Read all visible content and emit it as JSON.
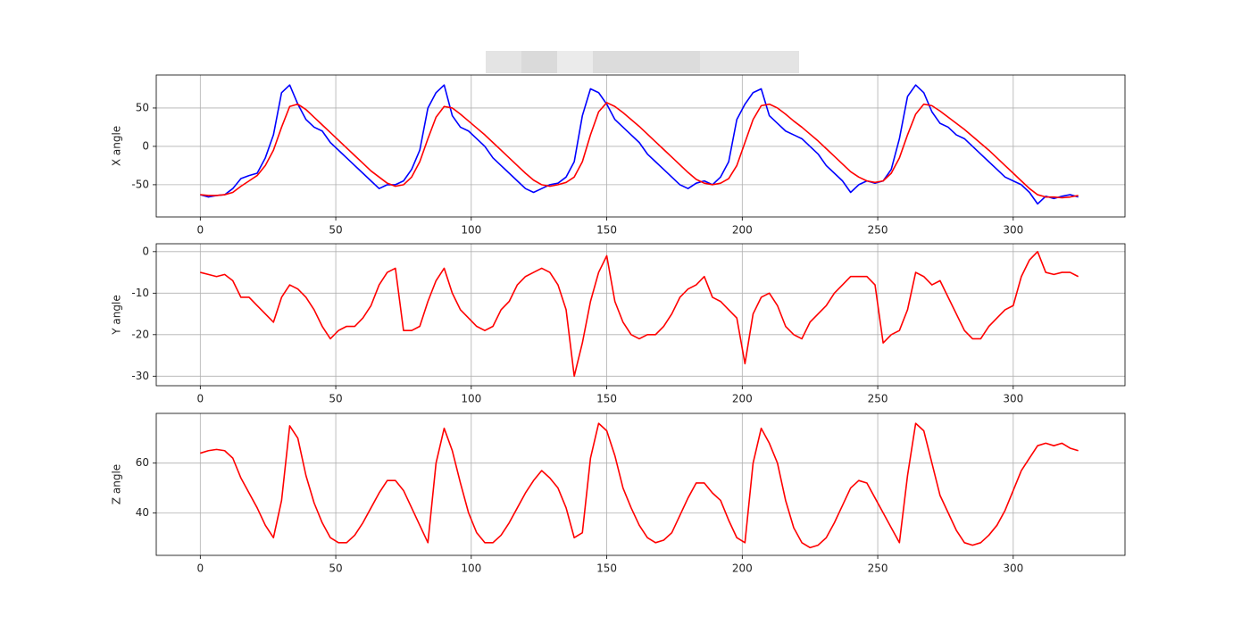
{
  "chart_data": [
    {
      "type": "line",
      "ylabel": "X angle",
      "x": [
        0,
        3,
        6,
        9,
        12,
        15,
        18,
        21,
        24,
        27,
        30,
        33,
        36,
        39,
        42,
        45,
        48,
        51,
        54,
        57,
        60,
        63,
        66,
        69,
        72,
        75,
        78,
        81,
        84,
        87,
        90,
        93,
        96,
        99,
        102,
        105,
        108,
        111,
        114,
        117,
        120,
        123,
        126,
        129,
        132,
        135,
        138,
        141,
        144,
        147,
        150,
        153,
        156,
        159,
        162,
        165,
        168,
        171,
        174,
        177,
        180,
        183,
        186,
        189,
        192,
        195,
        198,
        201,
        204,
        207,
        210,
        213,
        216,
        219,
        222,
        225,
        228,
        231,
        234,
        237,
        240,
        243,
        246,
        249,
        252,
        255,
        258,
        261,
        264,
        267,
        270,
        273,
        276,
        279,
        282,
        285,
        288,
        291,
        294,
        297,
        300,
        303,
        306,
        309,
        312,
        315,
        318,
        321,
        324
      ],
      "series": [
        {
          "color": "#0000ff",
          "values": [
            -63,
            -66,
            -64,
            -63,
            -55,
            -42,
            -38,
            -35,
            -15,
            15,
            70,
            80,
            55,
            35,
            25,
            20,
            5,
            -5,
            -15,
            -25,
            -35,
            -45,
            -55,
            -50,
            -50,
            -45,
            -30,
            -5,
            50,
            70,
            80,
            40,
            25,
            20,
            10,
            0,
            -15,
            -25,
            -35,
            -45,
            -55,
            -60,
            -55,
            -50,
            -48,
            -40,
            -20,
            40,
            75,
            70,
            55,
            35,
            25,
            15,
            5,
            -10,
            -20,
            -30,
            -40,
            -50,
            -55,
            -48,
            -45,
            -50,
            -40,
            -20,
            35,
            55,
            70,
            75,
            40,
            30,
            20,
            15,
            10,
            0,
            -10,
            -25,
            -35,
            -45,
            -60,
            -50,
            -45,
            -48,
            -45,
            -30,
            10,
            65,
            80,
            70,
            45,
            30,
            25,
            15,
            10,
            0,
            -10,
            -20,
            -30,
            -40,
            -45,
            -50,
            -60,
            -75,
            -65,
            -68,
            -65,
            -63,
            -66
          ]
        },
        {
          "color": "#ff0000",
          "values": [
            -63,
            -64,
            -64,
            -63,
            -60,
            -52,
            -45,
            -38,
            -25,
            -5,
            25,
            52,
            55,
            48,
            38,
            28,
            18,
            8,
            -2,
            -12,
            -22,
            -32,
            -40,
            -48,
            -52,
            -50,
            -40,
            -20,
            10,
            38,
            52,
            50,
            42,
            33,
            24,
            15,
            5,
            -5,
            -15,
            -25,
            -35,
            -44,
            -50,
            -52,
            -50,
            -47,
            -40,
            -20,
            15,
            45,
            57,
            52,
            44,
            35,
            26,
            16,
            6,
            -4,
            -14,
            -24,
            -34,
            -43,
            -48,
            -50,
            -48,
            -42,
            -25,
            5,
            35,
            53,
            55,
            50,
            42,
            33,
            25,
            16,
            7,
            -3,
            -13,
            -23,
            -33,
            -40,
            -45,
            -47,
            -45,
            -35,
            -15,
            15,
            42,
            55,
            53,
            46,
            38,
            30,
            22,
            13,
            4,
            -5,
            -15,
            -25,
            -35,
            -45,
            -55,
            -63,
            -66,
            -66,
            -67,
            -66,
            -64
          ]
        }
      ],
      "xlim": [
        -16.25,
        341.25
      ],
      "ylim": [
        -92,
        93
      ],
      "xticks": [
        0,
        50,
        100,
        150,
        200,
        250,
        300
      ],
      "yticks": [
        -50,
        0,
        50
      ],
      "grid": true
    },
    {
      "type": "line",
      "ylabel": "Y angle",
      "x": [
        0,
        3,
        6,
        9,
        12,
        15,
        18,
        21,
        24,
        27,
        30,
        33,
        36,
        39,
        42,
        45,
        48,
        51,
        54,
        57,
        60,
        63,
        66,
        69,
        72,
        75,
        78,
        81,
        84,
        87,
        90,
        93,
        96,
        99,
        102,
        105,
        108,
        111,
        114,
        117,
        120,
        123,
        126,
        129,
        132,
        135,
        138,
        141,
        144,
        147,
        150,
        153,
        156,
        159,
        162,
        165,
        168,
        171,
        174,
        177,
        180,
        183,
        186,
        189,
        192,
        195,
        198,
        201,
        204,
        207,
        210,
        213,
        216,
        219,
        222,
        225,
        228,
        231,
        234,
        237,
        240,
        243,
        246,
        249,
        252,
        255,
        258,
        261,
        264,
        267,
        270,
        273,
        276,
        279,
        282,
        285,
        288,
        291,
        294,
        297,
        300,
        303,
        306,
        309,
        312,
        315,
        318,
        321,
        324
      ],
      "series": [
        {
          "color": "#ff0000",
          "values": [
            -5,
            -5.5,
            -6,
            -5.5,
            -7,
            -11,
            -11,
            -13,
            -15,
            -17,
            -11,
            -8,
            -9,
            -11,
            -14,
            -18,
            -21,
            -19,
            -18,
            -18,
            -16,
            -13,
            -8,
            -5,
            -4,
            -19,
            -19,
            -18,
            -12,
            -7,
            -4,
            -10,
            -14,
            -16,
            -18,
            -19,
            -18,
            -14,
            -12,
            -8,
            -6,
            -5,
            -4,
            -5,
            -8,
            -14,
            -30,
            -22,
            -12,
            -5,
            -1,
            -12,
            -17,
            -20,
            -21,
            -20,
            -20,
            -18,
            -15,
            -11,
            -9,
            -8,
            -6,
            -11,
            -12,
            -14,
            -16,
            -27,
            -15,
            -11,
            -10,
            -13,
            -18,
            -20,
            -21,
            -17,
            -15,
            -13,
            -10,
            -8,
            -6,
            -6,
            -6,
            -8,
            -22,
            -20,
            -19,
            -14,
            -5,
            -6,
            -8,
            -7,
            -11,
            -15,
            -19,
            -21,
            -21,
            -18,
            -16,
            -14,
            -13,
            -6,
            -2,
            0,
            -5,
            -5.5,
            -5,
            -5,
            -6
          ]
        }
      ],
      "xlim": [
        -16.25,
        341.25
      ],
      "ylim": [
        -32.3,
        1.9
      ],
      "xticks": [
        0,
        50,
        100,
        150,
        200,
        250,
        300
      ],
      "yticks": [
        -30,
        -20,
        -10,
        0
      ],
      "grid": true
    },
    {
      "type": "line",
      "ylabel": "Z angle",
      "x": [
        0,
        3,
        6,
        9,
        12,
        15,
        18,
        21,
        24,
        27,
        30,
        33,
        36,
        39,
        42,
        45,
        48,
        51,
        54,
        57,
        60,
        63,
        66,
        69,
        72,
        75,
        78,
        81,
        84,
        87,
        90,
        93,
        96,
        99,
        102,
        105,
        108,
        111,
        114,
        117,
        120,
        123,
        126,
        129,
        132,
        135,
        138,
        141,
        144,
        147,
        150,
        153,
        156,
        159,
        162,
        165,
        168,
        171,
        174,
        177,
        180,
        183,
        186,
        189,
        192,
        195,
        198,
        201,
        204,
        207,
        210,
        213,
        216,
        219,
        222,
        225,
        228,
        231,
        234,
        237,
        240,
        243,
        246,
        249,
        252,
        255,
        258,
        261,
        264,
        267,
        270,
        273,
        276,
        279,
        282,
        285,
        288,
        291,
        294,
        297,
        300,
        303,
        306,
        309,
        312,
        315,
        318,
        321,
        324
      ],
      "series": [
        {
          "color": "#ff0000",
          "values": [
            64,
            65,
            65.5,
            65,
            62,
            54,
            48,
            42,
            35,
            30,
            45,
            75,
            70,
            55,
            44,
            36,
            30,
            28,
            28,
            31,
            36,
            42,
            48,
            53,
            53,
            49,
            42,
            35,
            28,
            60,
            74,
            65,
            52,
            40,
            32,
            28,
            28,
            31,
            36,
            42,
            48,
            53,
            57,
            54,
            50,
            42,
            30,
            32,
            62,
            76,
            73,
            63,
            50,
            42,
            35,
            30,
            28,
            29,
            32,
            39,
            46,
            52,
            52,
            48,
            45,
            37,
            30,
            28,
            60,
            74,
            68,
            60,
            45,
            34,
            28,
            26,
            27,
            30,
            36,
            43,
            50,
            53,
            52,
            46,
            40,
            34,
            28,
            55,
            76,
            73,
            60,
            47,
            40,
            33,
            28,
            27,
            28,
            31,
            35,
            41,
            49,
            57,
            62,
            67,
            68,
            67,
            68,
            66,
            65
          ]
        }
      ],
      "xlim": [
        -16.25,
        341.25
      ],
      "ylim": [
        22.9,
        80
      ],
      "xticks": [
        0,
        50,
        100,
        150,
        200,
        250,
        300
      ],
      "yticks": [
        40,
        60
      ],
      "grid": true
    }
  ]
}
